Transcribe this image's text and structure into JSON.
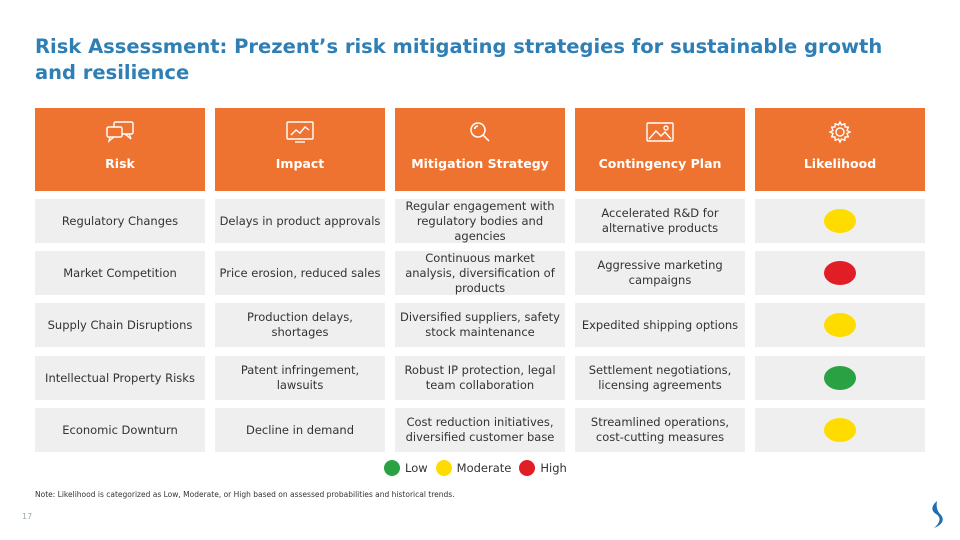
{
  "title": "Risk Assessment: Prezent’s risk mitigating strategies for sustainable growth and resilience",
  "colors": {
    "header": "#ee7330",
    "row": "#efefef",
    "title": "#2f7fb5",
    "low": "#2aa244",
    "moderate": "#ffdc00",
    "high": "#e11d26"
  },
  "headers": [
    {
      "label": "Risk",
      "icon": "chat-bubbles-icon"
    },
    {
      "label": "Impact",
      "icon": "trend-chart-icon"
    },
    {
      "label": "Mitigation Strategy",
      "icon": "magnifier-icon"
    },
    {
      "label": "Contingency Plan",
      "icon": "image-landscape-icon"
    },
    {
      "label": "Likelihood",
      "icon": "gear-icon"
    }
  ],
  "rows": [
    {
      "risk": "Regulatory Changes",
      "impact": "Delays in product approvals",
      "mitigation": "Regular engagement with regulatory bodies and agencies",
      "contingency": "Accelerated R&D for alternative products",
      "likelihood": "Moderate"
    },
    {
      "risk": "Market Competition",
      "impact": "Price erosion, reduced sales",
      "mitigation": "Continuous market analysis, diversification of products",
      "contingency": "Aggressive marketing campaigns",
      "likelihood": "High"
    },
    {
      "risk": "Supply Chain Disruptions",
      "impact": "Production delays, shortages",
      "mitigation": "Diversified suppliers, safety stock maintenance",
      "contingency": "Expedited shipping options",
      "likelihood": "Moderate"
    },
    {
      "risk": "Intellectual Property Risks",
      "impact": "Patent infringement, lawsuits",
      "mitigation": "Robust IP protection, legal team collaboration",
      "contingency": "Settlement negotiations, licensing agreements",
      "likelihood": "Low"
    },
    {
      "risk": "Economic Downturn",
      "impact": "Decline in demand",
      "mitigation": "Cost reduction initiatives, diversified customer base",
      "contingency": "Streamlined operations, cost-cutting measures",
      "likelihood": "Moderate"
    }
  ],
  "legend": {
    "low": "Low",
    "moderate": "Moderate",
    "high": "High"
  },
  "note": "Note: Likelihood is categorized as Low, Moderate, or High based on assessed probabilities and historical trends.",
  "page_number": "17"
}
